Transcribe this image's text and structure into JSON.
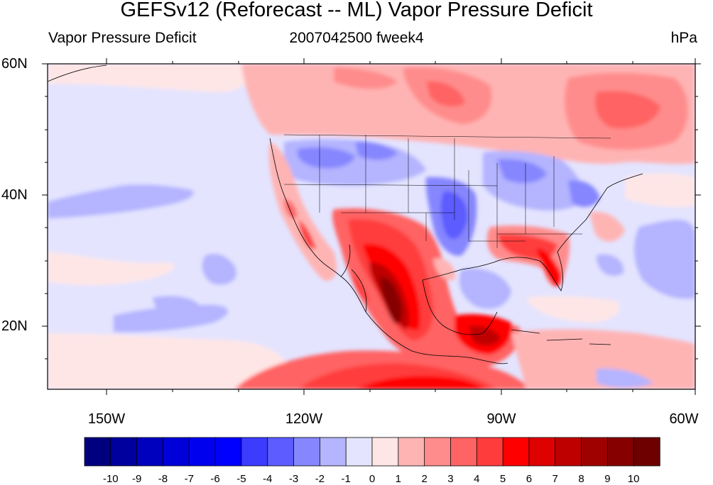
{
  "title": "GEFSv12 (Reforecast -- ML) Vapor Pressure Deficit",
  "subtitle_left": "Vapor Pressure Deficit",
  "subtitle_center": "2007042500 fweek4",
  "subtitle_right": "hPa",
  "lat_labels": [
    "60N",
    "40N",
    "20N"
  ],
  "lon_labels": [
    "150W",
    "120W",
    "90W",
    "60W"
  ],
  "colorbar": {
    "labels": [
      "-10",
      "-9",
      "-8",
      "-7",
      "-6",
      "-5",
      "-4",
      "-3",
      "-2",
      "-1",
      "0",
      "1",
      "2",
      "3",
      "4",
      "5",
      "6",
      "7",
      "8",
      "9",
      "10"
    ],
    "colors": [
      "#00007f",
      "#00009f",
      "#0000bf",
      "#0000d9",
      "#0000ef",
      "#0000ff",
      "#3c3cff",
      "#5c5cff",
      "#8686ff",
      "#b4b4ff",
      "#e4e4ff",
      "#ffe6e6",
      "#ffb4b4",
      "#ff8c8c",
      "#ff6464",
      "#ff3c3c",
      "#ff0000",
      "#df0000",
      "#bf0000",
      "#9f0000",
      "#860000",
      "#6e0000"
    ]
  }
}
